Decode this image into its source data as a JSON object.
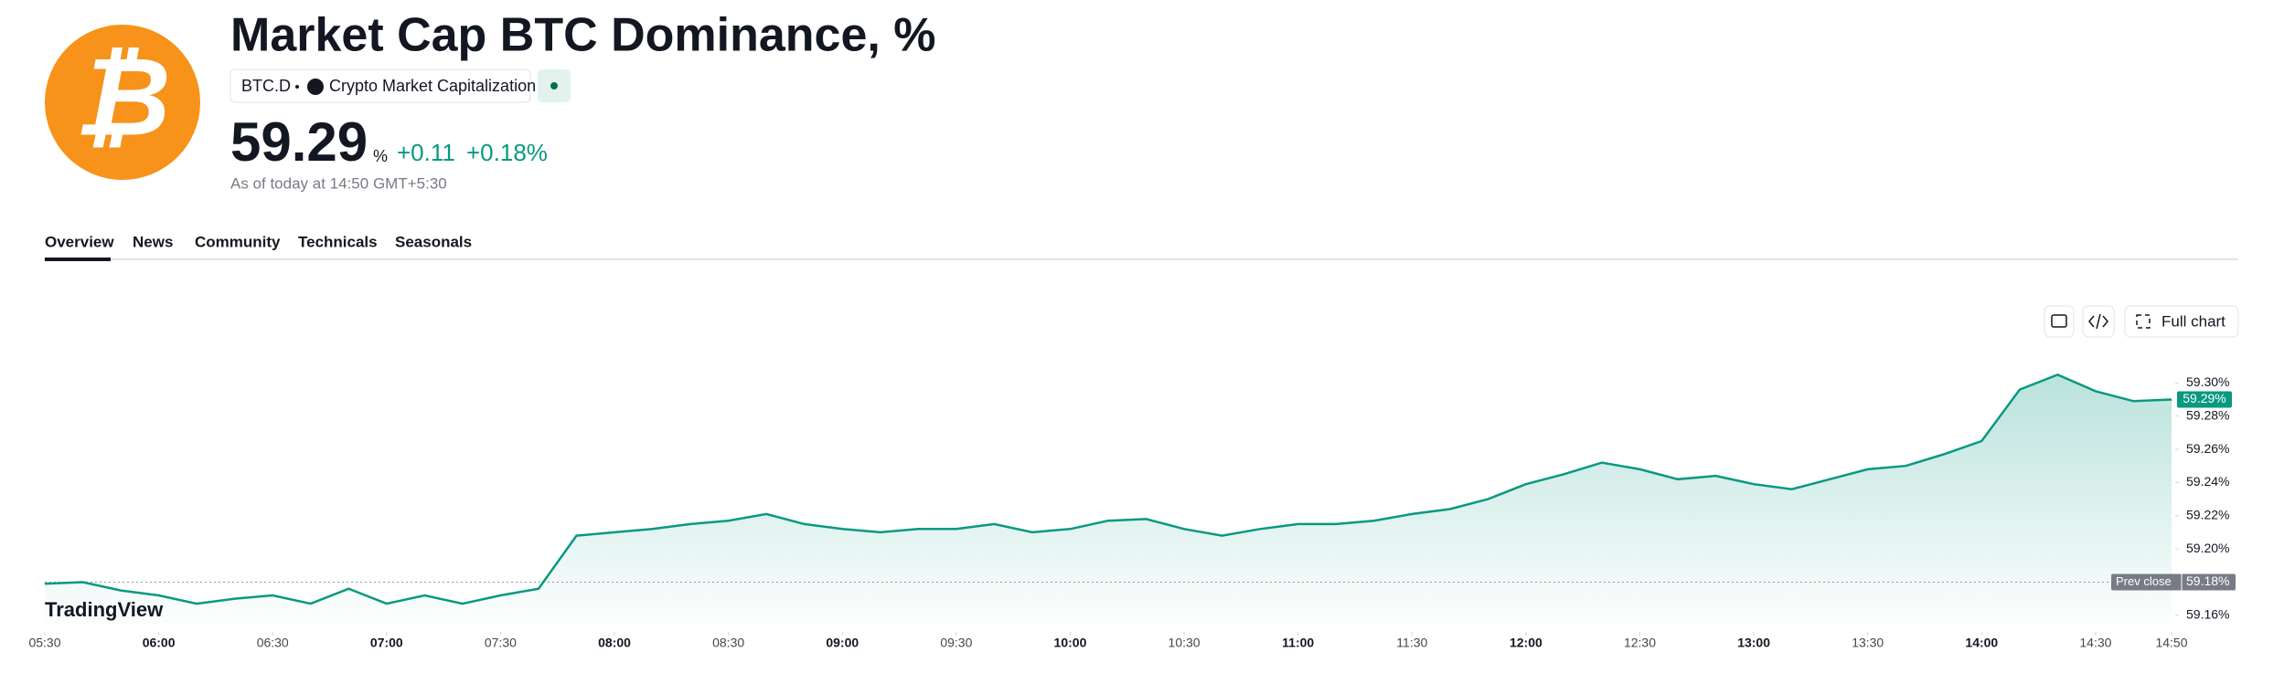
{
  "header": {
    "title": "Market Cap BTC Dominance, %",
    "symbol": "BTC.D",
    "source": "Crypto Market Capitalization",
    "price": "59.29",
    "unit": "%",
    "change": "+0.11",
    "change_pct": "+0.18%",
    "as_of": "As of today at 14:50 GMT+5:30"
  },
  "tabs": [
    "Overview",
    "News",
    "Community",
    "Technicals",
    "Seasonals"
  ],
  "toolbar": {
    "full_chart": "Full chart"
  },
  "brand": "TradingView",
  "chart_data": {
    "type": "line",
    "color": "#089981",
    "x": [
      "05:30",
      "05:40",
      "05:50",
      "06:00",
      "06:10",
      "06:20",
      "06:30",
      "06:40",
      "06:50",
      "07:00",
      "07:10",
      "07:20",
      "07:30",
      "07:40",
      "07:50",
      "08:00",
      "08:10",
      "08:20",
      "08:30",
      "08:40",
      "08:50",
      "09:00",
      "09:10",
      "09:20",
      "09:30",
      "09:40",
      "09:50",
      "10:00",
      "10:10",
      "10:20",
      "10:30",
      "10:40",
      "10:50",
      "11:00",
      "11:10",
      "11:20",
      "11:30",
      "11:40",
      "11:50",
      "12:00",
      "12:10",
      "12:20",
      "12:30",
      "12:40",
      "12:50",
      "13:00",
      "13:10",
      "13:20",
      "13:30",
      "13:40",
      "13:50",
      "14:00",
      "14:10",
      "14:20",
      "14:30",
      "14:40",
      "14:50"
    ],
    "values": [
      59.179,
      59.18,
      59.175,
      59.172,
      59.167,
      59.17,
      59.172,
      59.167,
      59.176,
      59.167,
      59.172,
      59.167,
      59.172,
      59.176,
      59.208,
      59.21,
      59.212,
      59.215,
      59.217,
      59.221,
      59.215,
      59.212,
      59.21,
      59.212,
      59.212,
      59.215,
      59.21,
      59.212,
      59.217,
      59.218,
      59.212,
      59.208,
      59.212,
      59.215,
      59.215,
      59.217,
      59.221,
      59.224,
      59.23,
      59.239,
      59.245,
      59.252,
      59.248,
      59.242,
      59.244,
      59.239,
      59.236,
      59.242,
      59.248,
      59.25,
      59.257,
      59.265,
      59.296,
      59.305,
      59.295,
      59.289,
      59.29
    ],
    "last_value_label": "59.29%",
    "prev_close": {
      "label": "Prev close",
      "value": 59.18,
      "value_label": "59.18%"
    },
    "ylim": [
      59.15,
      59.32
    ],
    "yticks": [
      {
        "value": 59.16,
        "label": "59.16%"
      },
      {
        "value": 59.18,
        "label": "59.18%"
      },
      {
        "value": 59.2,
        "label": "59.20%"
      },
      {
        "value": 59.22,
        "label": "59.22%"
      },
      {
        "value": 59.24,
        "label": "59.24%"
      },
      {
        "value": 59.26,
        "label": "59.26%"
      },
      {
        "value": 59.28,
        "label": "59.28%"
      },
      {
        "value": 59.3,
        "label": "59.30%"
      }
    ],
    "xticks": [
      "05:30",
      "06:00",
      "06:30",
      "07:00",
      "07:30",
      "08:00",
      "08:30",
      "09:00",
      "09:30",
      "10:00",
      "10:30",
      "11:00",
      "11:30",
      "12:00",
      "12:30",
      "13:00",
      "13:30",
      "14:00",
      "14:30",
      "14:50"
    ]
  }
}
